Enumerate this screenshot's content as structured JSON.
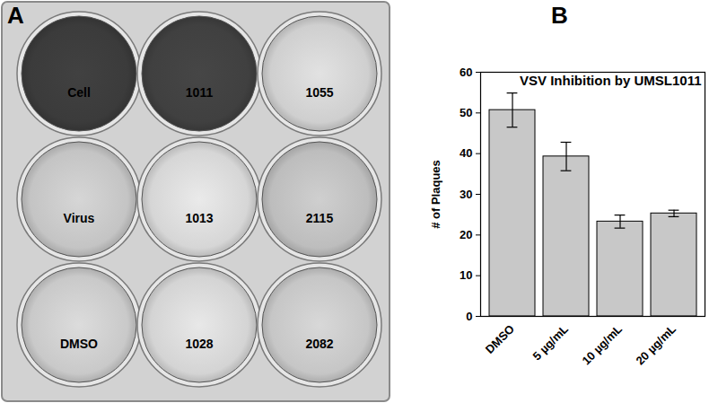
{
  "panel_labels": [
    "A",
    "B"
  ],
  "plate": {
    "wells": [
      "Cell",
      "1011",
      "1055",
      "Virus",
      "1013",
      "2115",
      "DMSO",
      "1028",
      "2082"
    ],
    "colors": [
      "#3b3b3b",
      "#404040",
      "#cfcfcf",
      "#c4c4c4",
      "#d6d6d6",
      "#bdbdbd",
      "#c9c9c9",
      "#d4d4d4",
      "#c6c6c6"
    ]
  },
  "chart_data": {
    "type": "bar",
    "title": "VSV Inhibition by UMSL1011",
    "y_label": "# of Plaques",
    "categories": [
      "DMSO",
      "5 µg/mL",
      "10 µg/mL",
      "20 µg/mL"
    ],
    "values": [
      50.7,
      39.3,
      23.3,
      25.3
    ],
    "errors": [
      4.2,
      3.5,
      1.6,
      0.8
    ],
    "color": "#c8c8c8",
    "ylim": [
      0,
      60
    ],
    "yticks": [
      0,
      10,
      20,
      30,
      40,
      50,
      60
    ],
    "grid": false
  }
}
